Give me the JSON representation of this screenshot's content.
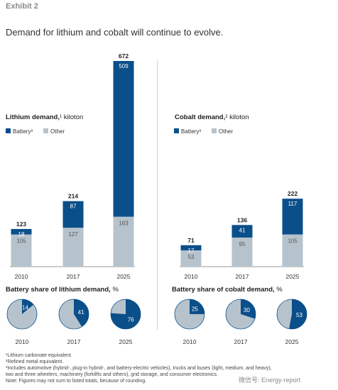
{
  "header": {
    "exhibit": "Exhibit 2",
    "title": "Demand for lithium and cobalt will continue to evolve."
  },
  "colors": {
    "battery": "#0b4f8a",
    "other": "#b6c3cc",
    "divider": "#d0d0d0"
  },
  "chart_data": [
    {
      "type": "bar",
      "stacked": true,
      "title": "Lithium demand,¹ kiloton",
      "categories": [
        "2010",
        "2017",
        "2025"
      ],
      "series": [
        {
          "name": "Battery³",
          "values": [
            18,
            87,
            509
          ]
        },
        {
          "name": "Other",
          "values": [
            105,
            127,
            163
          ]
        }
      ],
      "totals": [
        123,
        214,
        672
      ],
      "legend": [
        "Battery³",
        "Other"
      ],
      "ylim": [
        0,
        672
      ]
    },
    {
      "type": "bar",
      "stacked": true,
      "title": "Cobalt demand,² kiloton",
      "categories": [
        "2010",
        "2017",
        "2025"
      ],
      "series": [
        {
          "name": "Battery³",
          "values": [
            17,
            41,
            117
          ]
        },
        {
          "name": "Other",
          "values": [
            53,
            95,
            105
          ]
        }
      ],
      "totals": [
        71,
        136,
        222
      ],
      "legend": [
        "Battery³",
        "Other"
      ],
      "ylim": [
        0,
        672
      ]
    },
    {
      "type": "pie",
      "title": "Battery share of lithium demand, %",
      "categories": [
        "2010",
        "2017",
        "2025"
      ],
      "values": [
        14,
        41,
        76
      ]
    },
    {
      "type": "pie",
      "title": "Battery share of cobalt demand, %",
      "categories": [
        "2010",
        "2017",
        "2025"
      ],
      "values": [
        25,
        30,
        53
      ]
    }
  ],
  "footnotes": [
    "¹Lithium carbonate equivalent.",
    "²Refined metal equivalent.",
    "³Includes automotive (hybrid-, plug-in hybrid-, and battery-electric vehicles), trucks and buses (light, medium, and heavy),",
    "two and three wheelers, machinery (forklifts and others), grid storage, and consumer electronics.",
    "Note: Figures may not sum to listed totals, because of rounding."
  ],
  "watermark": "微信号: Energy-report"
}
